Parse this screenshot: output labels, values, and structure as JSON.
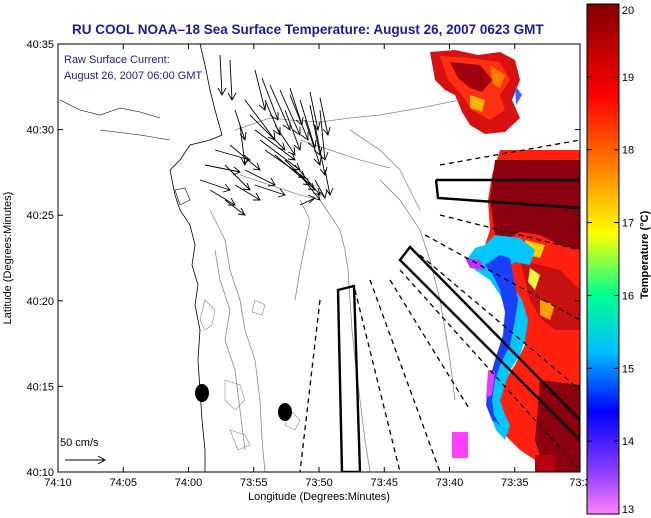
{
  "title": "RU COOL  NOAA–18  Sea Surface Temperature:  August 26, 2007 0623 GMT",
  "annotation": {
    "line1": "Raw Surface Current:",
    "line2": "August 26, 2007 06:00 GMT"
  },
  "scale_label": "50 cm/s",
  "x_axis": {
    "label": "Longitude (Degrees:Minutes)",
    "ticks": [
      "74:10",
      "74:05",
      "74:00",
      "73:55",
      "73:50",
      "73:45",
      "73:40",
      "73:35",
      "73:3"
    ]
  },
  "y_axis": {
    "label": "Latitude (Degrees:Minutes)",
    "ticks": [
      "40:35",
      "40:30",
      "40:25",
      "40:20",
      "40:15",
      "40:10"
    ]
  },
  "colorbar": {
    "label": "Temperature (°C)",
    "ticks": [
      "20",
      "19",
      "18",
      "17",
      "16",
      "15",
      "14",
      "13"
    ],
    "min": 13,
    "max": 20,
    "colors": [
      "#ff80ff",
      "#8040ff",
      "#0000ff",
      "#00c0ff",
      "#00ff80",
      "#ffff00",
      "#ff8000",
      "#ff0000",
      "#800000"
    ]
  }
}
